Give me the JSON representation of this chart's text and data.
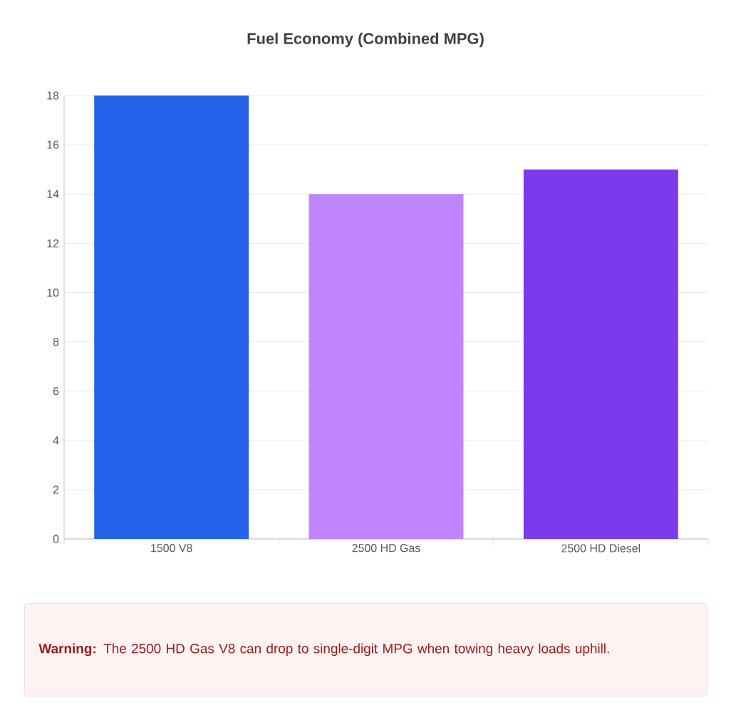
{
  "chart_data": {
    "type": "bar",
    "title": "Fuel Economy (Combined MPG)",
    "categories": [
      "1500 V8",
      "2500 HD Gas",
      "2500 HD Diesel"
    ],
    "values": [
      18,
      14,
      15
    ],
    "colors": [
      "#2563eb",
      "#c084fc",
      "#7c3aed"
    ],
    "ylim": [
      0,
      18
    ],
    "yticks": [
      0,
      2,
      4,
      6,
      8,
      10,
      12,
      14,
      16,
      18
    ],
    "grid": true,
    "annotations": [
      "**Warning:** The 2500 HD Gas V8 can drop to single-digit MPG when towing heavy loads uphill."
    ]
  }
}
